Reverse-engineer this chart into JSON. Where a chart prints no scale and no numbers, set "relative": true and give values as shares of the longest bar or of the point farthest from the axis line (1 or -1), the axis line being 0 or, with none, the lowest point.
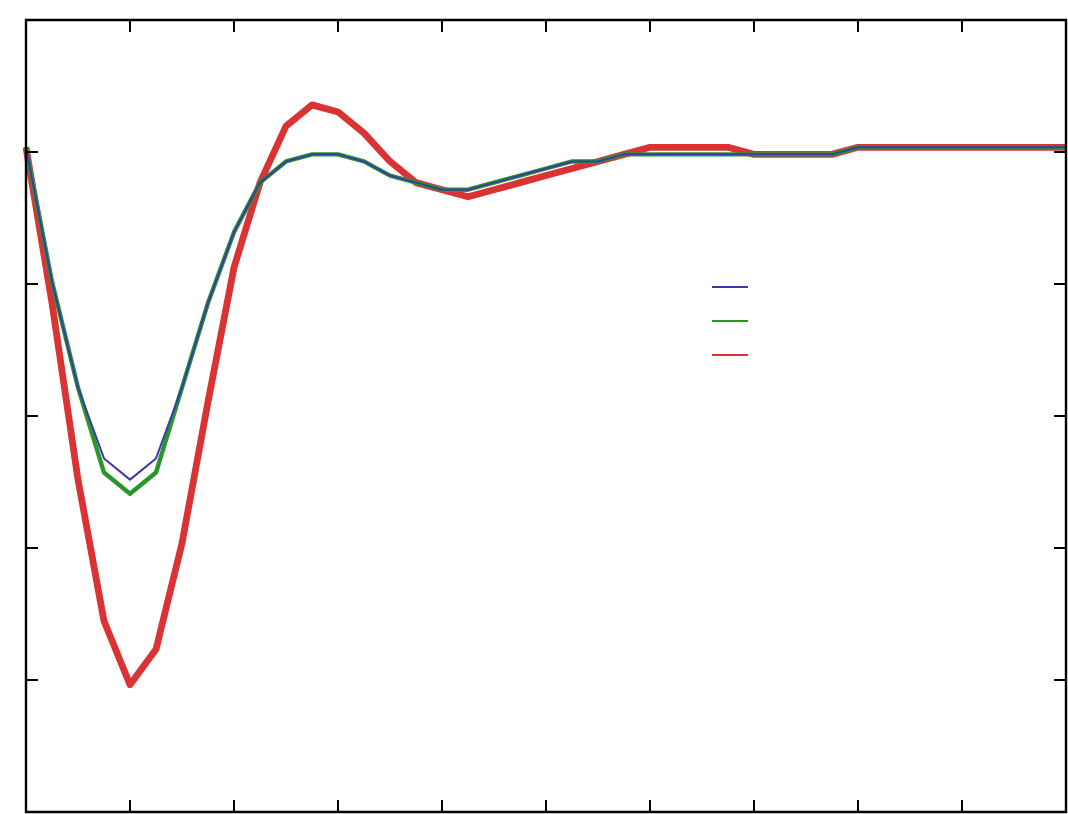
{
  "chart_data": {
    "type": "line",
    "relative": true,
    "marker": "none",
    "line_style": "solid",
    "categories": [
      null,
      null,
      null,
      null,
      null,
      null,
      null,
      null,
      null,
      null,
      null,
      null,
      null,
      null,
      null,
      null,
      null,
      null,
      null,
      null,
      null,
      null,
      null,
      null,
      null,
      null,
      null,
      null,
      null,
      null,
      null,
      null,
      null,
      null,
      null,
      null,
      null,
      null,
      null,
      null,
      null
    ],
    "series": [
      {
        "color": "#3a3aa8",
        "values": [
          0.94,
          0.75,
          0.6,
          0.5,
          0.47,
          0.5,
          0.6,
          0.72,
          0.82,
          0.89,
          0.92,
          0.93,
          0.93,
          0.92,
          0.9,
          0.89,
          0.88,
          0.88,
          0.89,
          0.9,
          0.91,
          0.92,
          0.92,
          0.93,
          0.93,
          0.93,
          0.93,
          0.93,
          0.93,
          0.93,
          0.93,
          0.93,
          0.94,
          0.94,
          0.94,
          0.94,
          0.94,
          0.94,
          0.94,
          0.94,
          0.94
        ]
      },
      {
        "color": "#2a962a",
        "values": [
          0.94,
          0.75,
          0.6,
          0.48,
          0.45,
          0.48,
          0.6,
          0.72,
          0.82,
          0.89,
          0.92,
          0.93,
          0.93,
          0.92,
          0.9,
          0.89,
          0.88,
          0.88,
          0.89,
          0.9,
          0.91,
          0.92,
          0.92,
          0.93,
          0.93,
          0.93,
          0.93,
          0.93,
          0.93,
          0.93,
          0.93,
          0.93,
          0.94,
          0.94,
          0.94,
          0.94,
          0.94,
          0.94,
          0.94,
          0.94,
          0.94
        ]
      },
      {
        "color": "#d93333",
        "values": [
          0.94,
          0.72,
          0.47,
          0.27,
          0.18,
          0.23,
          0.38,
          0.58,
          0.77,
          0.89,
          0.97,
          1.0,
          0.99,
          0.96,
          0.92,
          0.89,
          0.88,
          0.87,
          0.88,
          0.89,
          0.9,
          0.91,
          0.92,
          0.93,
          0.94,
          0.94,
          0.94,
          0.94,
          0.93,
          0.93,
          0.93,
          0.93,
          0.94,
          0.94,
          0.94,
          0.94,
          0.94,
          0.94,
          0.94,
          0.94,
          0.94
        ]
      }
    ]
  }
}
